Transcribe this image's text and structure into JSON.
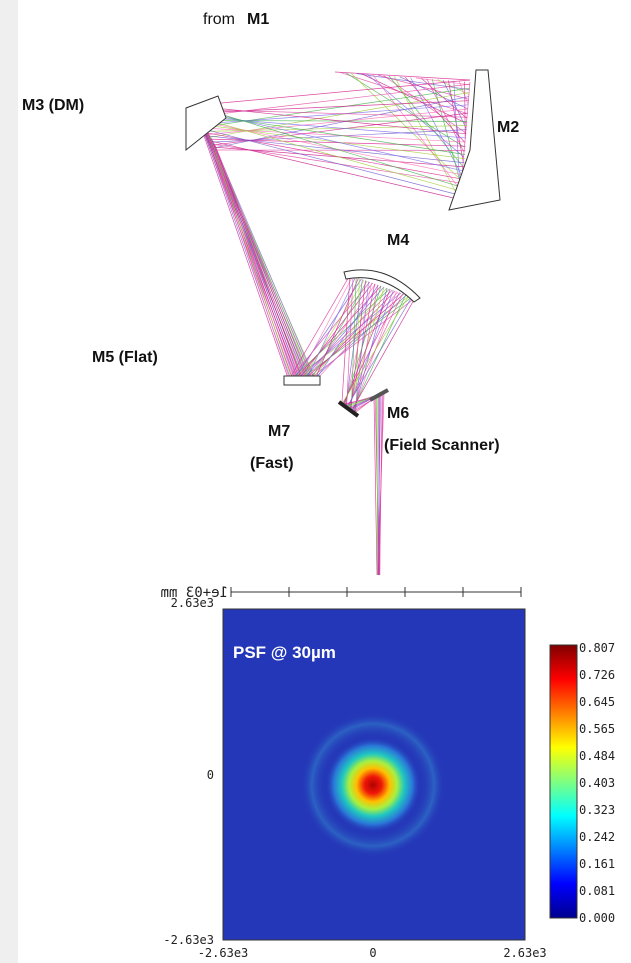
{
  "diagram": {
    "labels": {
      "from": "from",
      "m1": "M1",
      "m3": "M3 (DM)",
      "m2": "M2",
      "m4": "M4",
      "m5": "M5 (Flat)",
      "m7": [
        "M7",
        "(Fast)"
      ],
      "m6": [
        "M6",
        "(Field Scanner)"
      ]
    },
    "scale_bar": "1e+03 mm"
  },
  "psf_plot": {
    "title": "PSF @ 30µm",
    "y_ticks": [
      "2.63e3",
      "0",
      "-2.63e3"
    ],
    "x_ticks": [
      "-2.63e3",
      "0",
      "2.63e3"
    ],
    "colorbar_ticks": [
      "0.807",
      "0.726",
      "0.645",
      "0.565",
      "0.484",
      "0.403",
      "0.323",
      "0.242",
      "0.161",
      "0.081",
      "0.000"
    ]
  }
}
